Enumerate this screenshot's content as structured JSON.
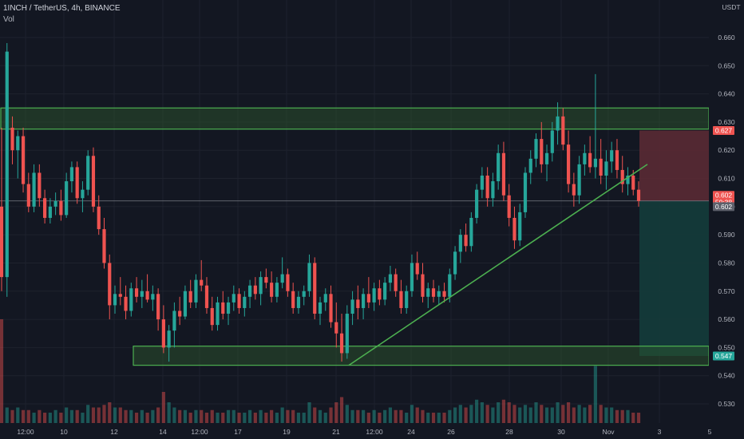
{
  "header": {
    "symbol_line": "1INCH / TetherUS, 4h, BINANCE",
    "volume_label": "Vol"
  },
  "chart_data": {
    "type": "candlestick",
    "quote_currency": "USDT",
    "ylim": [
      0.525,
      0.665
    ],
    "y_ticks": [
      0.53,
      0.54,
      0.55,
      0.56,
      0.57,
      0.58,
      0.59,
      0.6,
      0.61,
      0.62,
      0.63,
      0.64,
      0.65,
      0.66
    ],
    "x_ticks": [
      "12:00",
      "10",
      "12",
      "14",
      "12:00",
      "17",
      "19",
      "21",
      "12:00",
      "24",
      "26",
      "28",
      "30",
      "Nov",
      "3",
      "5"
    ],
    "price_tags": [
      {
        "value": "0.627",
        "kind": "stop"
      },
      {
        "value": "0.602",
        "kind": "entry"
      },
      {
        "value": "59:38",
        "kind": "countdown"
      },
      {
        "value": "0.602",
        "kind": "last"
      },
      {
        "value": "0.547",
        "kind": "target"
      }
    ],
    "zones": [
      {
        "name": "resistance",
        "from": 0.628,
        "to": 0.635
      },
      {
        "name": "support",
        "from": 0.5437,
        "to": 0.5505
      }
    ],
    "trendline": {
      "from": {
        "x": "21",
        "y": 0.5437
      },
      "to": {
        "x": "Nov+",
        "y": 0.615
      }
    },
    "position": {
      "entry": 0.602,
      "stop": 0.627,
      "target": 0.547
    },
    "candles": [
      [
        0.6,
        0.628,
        0.57,
        0.575
      ],
      [
        0.575,
        0.658,
        0.568,
        0.655
      ],
      [
        0.628,
        0.632,
        0.615,
        0.62
      ],
      [
        0.62,
        0.627,
        0.61,
        0.625
      ],
      [
        0.625,
        0.628,
        0.605,
        0.608
      ],
      [
        0.608,
        0.612,
        0.598,
        0.6
      ],
      [
        0.6,
        0.615,
        0.598,
        0.612
      ],
      [
        0.612,
        0.615,
        0.6,
        0.603
      ],
      [
        0.603,
        0.606,
        0.594,
        0.596
      ],
      [
        0.596,
        0.603,
        0.594,
        0.6
      ],
      [
        0.6,
        0.605,
        0.597,
        0.602
      ],
      [
        0.602,
        0.606,
        0.595,
        0.597
      ],
      [
        0.597,
        0.612,
        0.596,
        0.609
      ],
      [
        0.609,
        0.616,
        0.605,
        0.614
      ],
      [
        0.614,
        0.616,
        0.601,
        0.603
      ],
      [
        0.603,
        0.609,
        0.598,
        0.606
      ],
      [
        0.606,
        0.62,
        0.604,
        0.618
      ],
      [
        0.618,
        0.621,
        0.598,
        0.6
      ],
      [
        0.6,
        0.604,
        0.59,
        0.592
      ],
      [
        0.592,
        0.596,
        0.578,
        0.58
      ],
      [
        0.58,
        0.583,
        0.56,
        0.565
      ],
      [
        0.565,
        0.572,
        0.562,
        0.569
      ],
      [
        0.569,
        0.575,
        0.565,
        0.568
      ],
      [
        0.568,
        0.572,
        0.56,
        0.563
      ],
      [
        0.563,
        0.573,
        0.561,
        0.571
      ],
      [
        0.571,
        0.575,
        0.566,
        0.568
      ],
      [
        0.568,
        0.574,
        0.564,
        0.57
      ],
      [
        0.57,
        0.576,
        0.566,
        0.567
      ],
      [
        0.567,
        0.572,
        0.563,
        0.569
      ],
      [
        0.569,
        0.571,
        0.556,
        0.56
      ],
      [
        0.56,
        0.565,
        0.548,
        0.55
      ],
      [
        0.55,
        0.558,
        0.545,
        0.556
      ],
      [
        0.556,
        0.566,
        0.55,
        0.563
      ],
      [
        0.563,
        0.568,
        0.558,
        0.561
      ],
      [
        0.561,
        0.572,
        0.56,
        0.57
      ],
      [
        0.57,
        0.574,
        0.564,
        0.566
      ],
      [
        0.566,
        0.576,
        0.564,
        0.574
      ],
      [
        0.574,
        0.581,
        0.57,
        0.572
      ],
      [
        0.572,
        0.575,
        0.562,
        0.564
      ],
      [
        0.564,
        0.568,
        0.556,
        0.558
      ],
      [
        0.558,
        0.568,
        0.556,
        0.566
      ],
      [
        0.566,
        0.57,
        0.56,
        0.562
      ],
      [
        0.562,
        0.568,
        0.558,
        0.566
      ],
      [
        0.566,
        0.572,
        0.563,
        0.569
      ],
      [
        0.569,
        0.571,
        0.562,
        0.564
      ],
      [
        0.564,
        0.57,
        0.561,
        0.568
      ],
      [
        0.568,
        0.574,
        0.564,
        0.572
      ],
      [
        0.572,
        0.575,
        0.567,
        0.569
      ],
      [
        0.569,
        0.577,
        0.565,
        0.575
      ],
      [
        0.575,
        0.578,
        0.571,
        0.573
      ],
      [
        0.573,
        0.577,
        0.566,
        0.568
      ],
      [
        0.568,
        0.575,
        0.566,
        0.573
      ],
      [
        0.573,
        0.582,
        0.571,
        0.576
      ],
      [
        0.576,
        0.578,
        0.568,
        0.57
      ],
      [
        0.57,
        0.573,
        0.562,
        0.564
      ],
      [
        0.564,
        0.57,
        0.562,
        0.568
      ],
      [
        0.568,
        0.572,
        0.565,
        0.57
      ],
      [
        0.57,
        0.583,
        0.568,
        0.58
      ],
      [
        0.58,
        0.582,
        0.56,
        0.562
      ],
      [
        0.562,
        0.568,
        0.558,
        0.566
      ],
      [
        0.566,
        0.571,
        0.563,
        0.569
      ],
      [
        0.569,
        0.572,
        0.557,
        0.559
      ],
      [
        0.559,
        0.566,
        0.55,
        0.555
      ],
      [
        0.555,
        0.562,
        0.545,
        0.548
      ],
      [
        0.548,
        0.565,
        0.546,
        0.562
      ],
      [
        0.562,
        0.57,
        0.558,
        0.567
      ],
      [
        0.567,
        0.572,
        0.56,
        0.564
      ],
      [
        0.564,
        0.571,
        0.56,
        0.569
      ],
      [
        0.569,
        0.575,
        0.564,
        0.566
      ],
      [
        0.566,
        0.573,
        0.563,
        0.571
      ],
      [
        0.571,
        0.574,
        0.565,
        0.567
      ],
      [
        0.567,
        0.575,
        0.565,
        0.573
      ],
      [
        0.573,
        0.579,
        0.57,
        0.576
      ],
      [
        0.576,
        0.578,
        0.568,
        0.57
      ],
      [
        0.57,
        0.574,
        0.562,
        0.564
      ],
      [
        0.564,
        0.572,
        0.562,
        0.57
      ],
      [
        0.57,
        0.583,
        0.568,
        0.58
      ],
      [
        0.58,
        0.584,
        0.574,
        0.576
      ],
      [
        0.576,
        0.58,
        0.566,
        0.568
      ],
      [
        0.568,
        0.573,
        0.564,
        0.571
      ],
      [
        0.571,
        0.574,
        0.566,
        0.568
      ],
      [
        0.568,
        0.572,
        0.565,
        0.57
      ],
      [
        0.57,
        0.573,
        0.566,
        0.568
      ],
      [
        0.568,
        0.578,
        0.566,
        0.576
      ],
      [
        0.576,
        0.586,
        0.574,
        0.584
      ],
      [
        0.584,
        0.592,
        0.58,
        0.59
      ],
      [
        0.59,
        0.594,
        0.584,
        0.586
      ],
      [
        0.586,
        0.598,
        0.584,
        0.596
      ],
      [
        0.596,
        0.608,
        0.594,
        0.606
      ],
      [
        0.606,
        0.614,
        0.603,
        0.611
      ],
      [
        0.611,
        0.614,
        0.6,
        0.603
      ],
      [
        0.603,
        0.612,
        0.6,
        0.609
      ],
      [
        0.609,
        0.622,
        0.606,
        0.619
      ],
      [
        0.619,
        0.623,
        0.602,
        0.604
      ],
      [
        0.604,
        0.608,
        0.593,
        0.596
      ],
      [
        0.596,
        0.6,
        0.585,
        0.588
      ],
      [
        0.588,
        0.601,
        0.586,
        0.598
      ],
      [
        0.598,
        0.614,
        0.596,
        0.612
      ],
      [
        0.612,
        0.62,
        0.608,
        0.617
      ],
      [
        0.617,
        0.626,
        0.614,
        0.624
      ],
      [
        0.624,
        0.63,
        0.612,
        0.615
      ],
      [
        0.615,
        0.622,
        0.609,
        0.619
      ],
      [
        0.619,
        0.63,
        0.616,
        0.627
      ],
      [
        0.627,
        0.637,
        0.622,
        0.632
      ],
      [
        0.632,
        0.635,
        0.62,
        0.622
      ],
      [
        0.622,
        0.627,
        0.605,
        0.608
      ],
      [
        0.608,
        0.612,
        0.6,
        0.604
      ],
      [
        0.604,
        0.618,
        0.601,
        0.615
      ],
      [
        0.615,
        0.622,
        0.611,
        0.619
      ],
      [
        0.619,
        0.625,
        0.612,
        0.614
      ],
      [
        0.614,
        0.647,
        0.61,
        0.617
      ],
      [
        0.617,
        0.624,
        0.608,
        0.611
      ],
      [
        0.611,
        0.62,
        0.606,
        0.616
      ],
      [
        0.616,
        0.623,
        0.612,
        0.62
      ],
      [
        0.62,
        0.624,
        0.61,
        0.613
      ],
      [
        0.613,
        0.618,
        0.605,
        0.608
      ],
      [
        0.608,
        0.614,
        0.604,
        0.611
      ],
      [
        0.611,
        0.613,
        0.604,
        0.606
      ],
      [
        0.606,
        0.609,
        0.6,
        0.602
      ]
    ],
    "volume": [
      40,
      6,
      5,
      6,
      5,
      5,
      4,
      5,
      4,
      4,
      5,
      4,
      6,
      5,
      5,
      4,
      7,
      6,
      6,
      7,
      8,
      6,
      6,
      5,
      5,
      4,
      5,
      4,
      5,
      6,
      12,
      8,
      6,
      5,
      5,
      4,
      5,
      5,
      4,
      5,
      4,
      4,
      5,
      5,
      4,
      4,
      5,
      4,
      5,
      4,
      5,
      4,
      6,
      5,
      5,
      4,
      4,
      8,
      6,
      5,
      4,
      6,
      8,
      10,
      7,
      5,
      5,
      5,
      4,
      5,
      4,
      5,
      6,
      5,
      5,
      4,
      7,
      6,
      5,
      4,
      4,
      4,
      4,
      5,
      6,
      7,
      6,
      7,
      9,
      8,
      7,
      6,
      8,
      9,
      8,
      7,
      6,
      7,
      6,
      8,
      7,
      6,
      6,
      8,
      7,
      8,
      6,
      7,
      6,
      7,
      22,
      7,
      6,
      6,
      5,
      5,
      5,
      4,
      4
    ]
  },
  "colors": {
    "background": "#131722",
    "up": "#26a69a",
    "down": "#ef5350",
    "zone_border": "#4caf50",
    "trendline": "#4caf50",
    "stop_fill": "#5a2a34",
    "target_fill": "#143c3b"
  }
}
